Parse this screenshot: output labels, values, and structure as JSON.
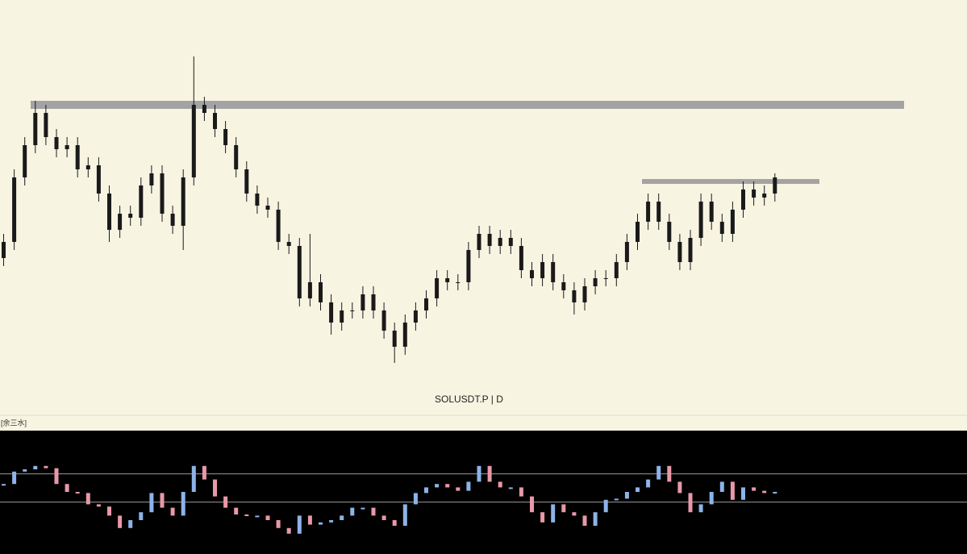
{
  "chart_data": [
    {
      "type": "candlestick",
      "title": "SOLUSDT.P | D",
      "color": "#1a1a1a",
      "ylim": [
        0,
        100
      ],
      "open": [
        36,
        40,
        56,
        64,
        72,
        66,
        63,
        64,
        58,
        59,
        52,
        43,
        47,
        46,
        54,
        57,
        47,
        44,
        56,
        74,
        72,
        68,
        64,
        58,
        52,
        49,
        48,
        40,
        39,
        26,
        30,
        25,
        20,
        23,
        23,
        27,
        23,
        18,
        14,
        20,
        23,
        26,
        31,
        30,
        30,
        38,
        42,
        39,
        41,
        39,
        33,
        31,
        35,
        30,
        28,
        25,
        29,
        31,
        31,
        35,
        40,
        45,
        50,
        45,
        40,
        35,
        41,
        50,
        45,
        42,
        48,
        53,
        51,
        52
      ],
      "high": [
        42,
        58,
        66,
        75,
        74,
        68,
        66,
        66,
        61,
        61,
        54,
        49,
        49,
        56,
        59,
        59,
        49,
        58,
        86,
        76,
        74,
        70,
        66,
        60,
        54,
        51,
        50,
        42,
        41,
        42,
        32,
        27,
        25,
        25,
        29,
        29,
        25,
        20,
        22,
        25,
        28,
        33,
        33,
        32,
        40,
        44,
        44,
        43,
        43,
        41,
        35,
        37,
        37,
        32,
        30,
        31,
        33,
        33,
        37,
        42,
        47,
        52,
        52,
        47,
        42,
        43,
        52,
        52,
        47,
        50,
        55,
        55,
        54,
        57
      ],
      "low": [
        34,
        38,
        54,
        62,
        64,
        61,
        61,
        56,
        56,
        50,
        40,
        41,
        44,
        44,
        52,
        45,
        42,
        38,
        54,
        70,
        66,
        62,
        56,
        50,
        47,
        46,
        38,
        37,
        24,
        24,
        23,
        17,
        18,
        21,
        21,
        21,
        16,
        10,
        12,
        18,
        21,
        24,
        28,
        28,
        28,
        36,
        37,
        37,
        37,
        31,
        29,
        29,
        28,
        26,
        22,
        23,
        27,
        29,
        29,
        33,
        38,
        43,
        43,
        38,
        33,
        33,
        39,
        43,
        40,
        40,
        46,
        49,
        49,
        50
      ],
      "close": [
        40,
        56,
        64,
        72,
        66,
        63,
        64,
        58,
        59,
        52,
        43,
        47,
        46,
        54,
        57,
        47,
        44,
        56,
        74,
        72,
        68,
        64,
        58,
        52,
        49,
        48,
        40,
        39,
        26,
        30,
        25,
        20,
        23,
        23,
        27,
        23,
        18,
        14,
        20,
        23,
        26,
        31,
        30,
        30,
        38,
        42,
        39,
        41,
        39,
        33,
        31,
        35,
        30,
        28,
        25,
        29,
        31,
        31,
        35,
        40,
        45,
        50,
        45,
        40,
        35,
        41,
        50,
        45,
        42,
        48,
        53,
        51,
        52,
        56
      ],
      "levels": [
        {
          "value": 74,
          "color": "#a3a3a3"
        },
        {
          "value": 55,
          "color": "#a3a3a3"
        }
      ]
    },
    {
      "type": "indicator",
      "name": "[余三水]",
      "up_color": "#8db3e8",
      "down_color": "#e898a8",
      "ylim": [
        0,
        100
      ],
      "values": [
        57,
        68,
        70,
        73,
        71,
        57,
        50,
        49,
        39,
        37,
        29,
        18,
        25,
        32,
        49,
        36,
        29,
        50,
        73,
        61,
        46,
        36,
        30,
        29,
        29,
        25,
        18,
        13,
        29,
        21,
        23,
        25,
        29,
        36,
        36,
        29,
        25,
        20,
        39,
        49,
        54,
        57,
        54,
        51,
        59,
        73,
        59,
        54,
        54,
        46,
        32,
        23,
        39,
        32,
        29,
        20,
        32,
        43,
        44,
        50,
        54,
        61,
        73,
        59,
        49,
        32,
        39,
        50,
        59,
        43,
        54,
        51,
        49,
        50
      ],
      "levels": [
        66,
        41
      ]
    }
  ]
}
